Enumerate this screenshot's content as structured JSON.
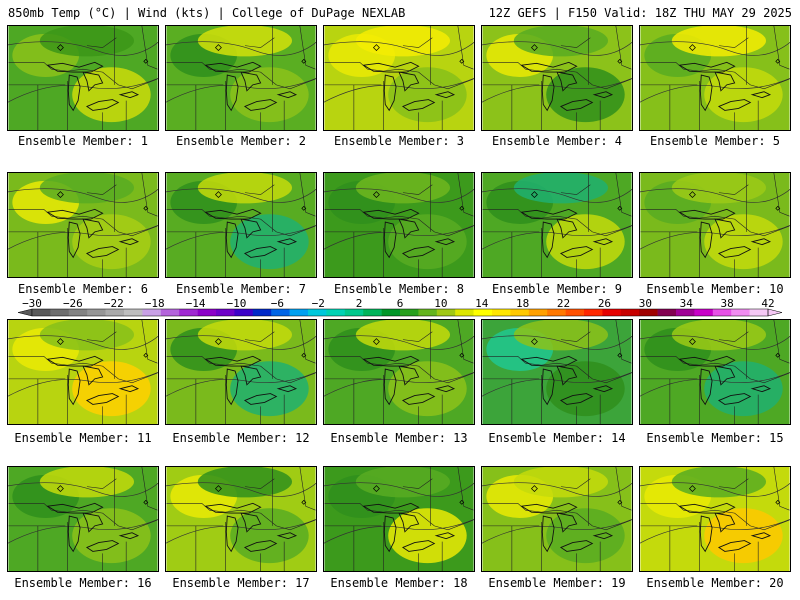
{
  "header": {
    "title_left": "850mb Temp (°C) | Wind (kts) | College of DuPage NEXLAB",
    "title_right": "12Z GEFS | F150 Valid: 18Z THU MAY 29 2025"
  },
  "colorbar": {
    "tick_labels": [
      "−30",
      "−26",
      "−22",
      "−18",
      "−14",
      "−10",
      "−6",
      "−2",
      "2",
      "6",
      "10",
      "14",
      "18",
      "22",
      "26",
      "30",
      "34",
      "38",
      "42"
    ],
    "colors": [
      "#5a5a5a",
      "#6e6e6e",
      "#828282",
      "#969696",
      "#aaaaaa",
      "#bebebe",
      "#c8a0e6",
      "#b464dc",
      "#a028d2",
      "#8c00c8",
      "#6e00c8",
      "#3c00c8",
      "#0028c8",
      "#0064e6",
      "#00a0f0",
      "#00c8dc",
      "#00d2b4",
      "#00c88c",
      "#00b45a",
      "#009628",
      "#28a01e",
      "#64b41e",
      "#a0c814",
      "#dce600",
      "#ffff00",
      "#ffe600",
      "#ffc800",
      "#ffa000",
      "#ff7800",
      "#ff5000",
      "#ff2800",
      "#e60000",
      "#c80000",
      "#a00000",
      "#820050",
      "#a00096",
      "#c800c8",
      "#e650e6",
      "#f08cf0",
      "#f5c8f5"
    ]
  },
  "panels": [
    {
      "label": "Ensemble Member: 1",
      "bg": "#4ea824",
      "blobs": [
        "#8cc21a",
        "#ccdc0a",
        "#3c9618"
      ]
    },
    {
      "label": "Ensemble Member: 2",
      "bg": "#5aae22",
      "blobs": [
        "#2f8f1c",
        "#8cc21a",
        "#d2e00a"
      ]
    },
    {
      "label": "Ensemble Member: 3",
      "bg": "#b8d410",
      "blobs": [
        "#eaea05",
        "#86c01a",
        "#f4ec04"
      ]
    },
    {
      "label": "Ensemble Member: 4",
      "bg": "#8cc21a",
      "blobs": [
        "#eaea05",
        "#2f8f1c",
        "#58ac22"
      ]
    },
    {
      "label": "Ensemble Member: 5",
      "bg": "#86c01a",
      "blobs": [
        "#58ac22",
        "#c4da0c",
        "#f4ec04"
      ]
    },
    {
      "label": "Ensemble Member: 6",
      "bg": "#7aba1c",
      "blobs": [
        "#eaea05",
        "#a8ce14",
        "#58ac22"
      ]
    },
    {
      "label": "Ensemble Member: 7",
      "bg": "#58ac22",
      "blobs": [
        "#2f8f1c",
        "#20b070",
        "#c4da0c"
      ]
    },
    {
      "label": "Ensemble Member: 8",
      "bg": "#3c9a1c",
      "blobs": [
        "#2f8f1c",
        "#58ac22",
        "#6eb61e"
      ]
    },
    {
      "label": "Ensemble Member: 9",
      "bg": "#4ea824",
      "blobs": [
        "#2f8f1c",
        "#c4da0c",
        "#20b070"
      ]
    },
    {
      "label": "Ensemble Member: 10",
      "bg": "#7aba1c",
      "blobs": [
        "#58ac22",
        "#c4da0c",
        "#9cca16"
      ]
    },
    {
      "label": "Ensemble Member: 11",
      "bg": "#b8d410",
      "blobs": [
        "#eaea05",
        "#ffd000",
        "#86c01a"
      ]
    },
    {
      "label": "Ensemble Member: 12",
      "bg": "#7aba1c",
      "blobs": [
        "#2f8f1c",
        "#20b070",
        "#c4da0c"
      ]
    },
    {
      "label": "Ensemble Member: 13",
      "bg": "#4ea824",
      "blobs": [
        "#2f8f1c",
        "#8cc21a",
        "#c4da0c"
      ]
    },
    {
      "label": "Ensemble Member: 14",
      "bg": "#3ca43a",
      "blobs": [
        "#20c890",
        "#2f8f1c",
        "#8cc21a"
      ]
    },
    {
      "label": "Ensemble Member: 15",
      "bg": "#4ea824",
      "blobs": [
        "#2f8f1c",
        "#20b070",
        "#9cca16"
      ]
    },
    {
      "label": "Ensemble Member: 16",
      "bg": "#4ea824",
      "blobs": [
        "#2f8f1c",
        "#8cc21a",
        "#c4da0c"
      ]
    },
    {
      "label": "Ensemble Member: 17",
      "bg": "#a0cc14",
      "blobs": [
        "#eaea05",
        "#58ac22",
        "#2f8f1c"
      ]
    },
    {
      "label": "Ensemble Member: 18",
      "bg": "#3c9a1c",
      "blobs": [
        "#2f8f1c",
        "#eaea05",
        "#58ac22"
      ]
    },
    {
      "label": "Ensemble Member: 19",
      "bg": "#86c01a",
      "blobs": [
        "#eaea05",
        "#58ac22",
        "#c4da0c"
      ]
    },
    {
      "label": "Ensemble Member: 20",
      "bg": "#c4da0c",
      "blobs": [
        "#eaea05",
        "#ffc800",
        "#58ac22"
      ]
    }
  ]
}
